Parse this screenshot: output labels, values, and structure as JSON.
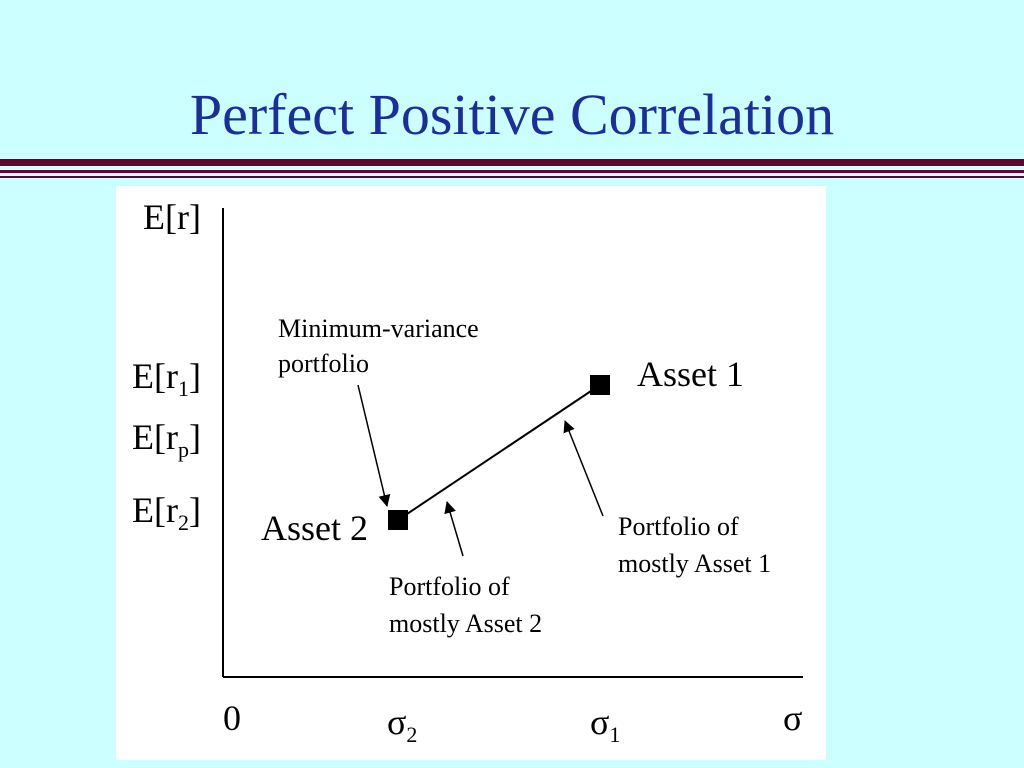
{
  "slide": {
    "title": "Perfect Positive Correlation",
    "colors": {
      "background": "#ccffff",
      "title": "#1a2f9a",
      "divider": "#660033",
      "panel": "#ffffff"
    }
  },
  "diagram": {
    "y_axis_label": "E[r]",
    "x_axis_label": "σ",
    "origin_label": "0",
    "y_ticks": [
      {
        "base": "E[r",
        "sub": "1",
        "close": "]"
      },
      {
        "base": "E[r",
        "sub": "p",
        "close": "]"
      },
      {
        "base": "E[r",
        "sub": "2",
        "close": "]"
      }
    ],
    "x_ticks": [
      {
        "base": "σ",
        "sub": "2"
      },
      {
        "base": "σ",
        "sub": "1"
      }
    ],
    "assets": [
      {
        "label": "Asset 1",
        "x": "σ1",
        "y": "E[r1]"
      },
      {
        "label": "Asset 2",
        "x": "σ2",
        "y": "E[r2]"
      }
    ],
    "annotations": {
      "min_variance": [
        "Minimum-variance",
        "portfolio"
      ],
      "mostly_asset2": [
        "Portfolio of",
        "mostly Asset 2"
      ],
      "mostly_asset1": [
        "Portfolio of",
        "mostly Asset 1"
      ]
    }
  }
}
